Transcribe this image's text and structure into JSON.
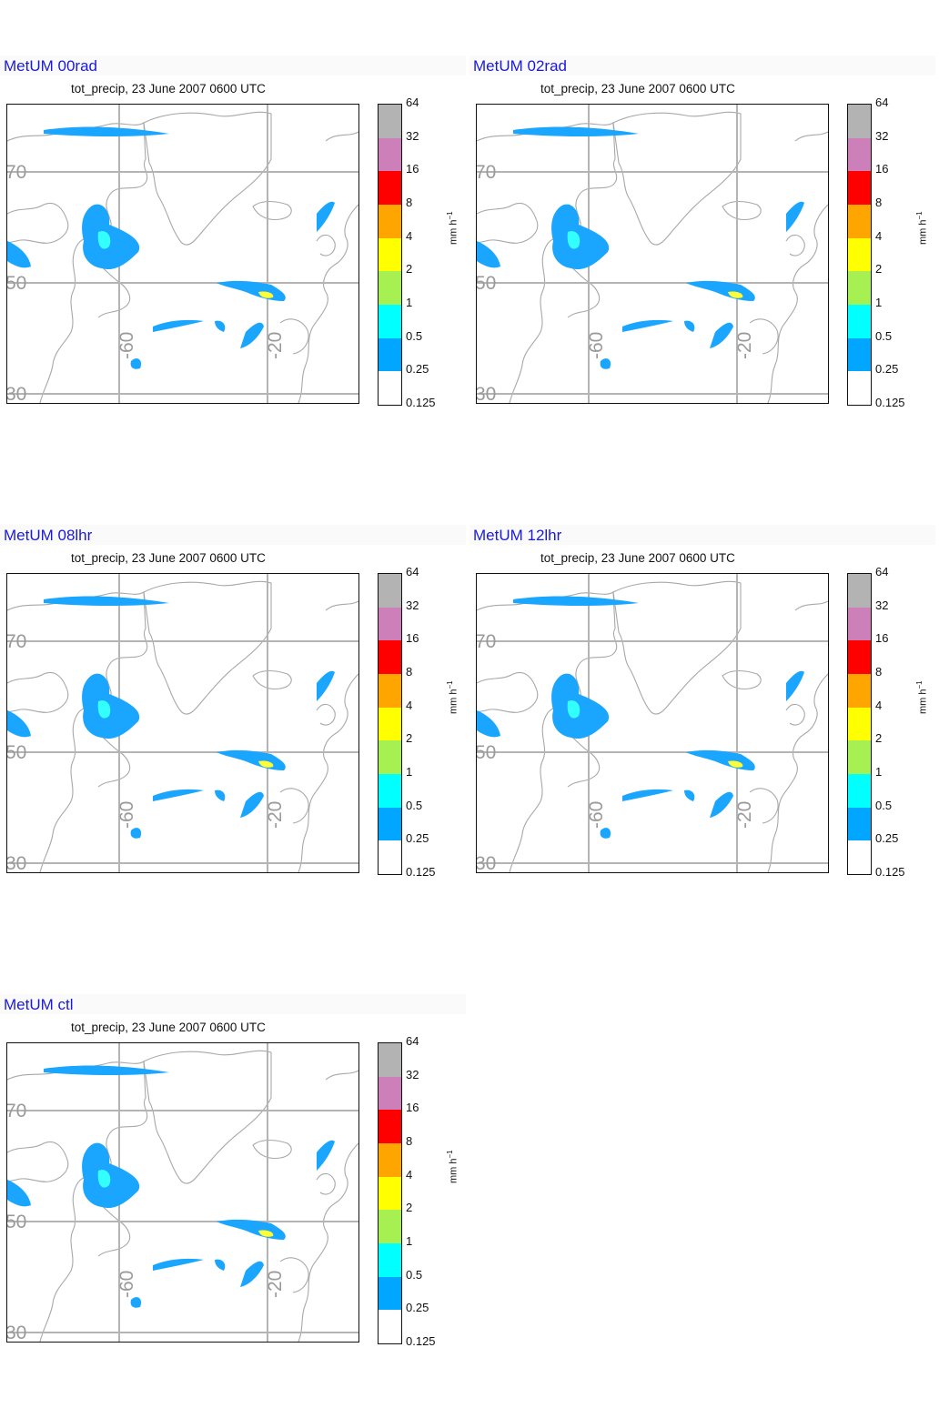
{
  "panels": [
    {
      "title": "MetUM 00rad",
      "subtitle": "tot_precip, 23 June 2007 0600 UTC"
    },
    {
      "title": "MetUM 02rad",
      "subtitle": "tot_precip, 23 June 2007 0600 UTC"
    },
    {
      "title": "MetUM 08lhr",
      "subtitle": "tot_precip, 23 June 2007 0600 UTC"
    },
    {
      "title": "MetUM 12lhr",
      "subtitle": "tot_precip, 23 June 2007 0600 UTC"
    },
    {
      "title": "MetUM ctl",
      "subtitle": "tot_precip, 23 June 2007 0600 UTC"
    }
  ],
  "map": {
    "lat_labels": [
      "70",
      "50",
      "30"
    ],
    "lon_labels": [
      "-60",
      "-20"
    ]
  },
  "colorbar": {
    "levels": [
      "64",
      "32",
      "16",
      "8",
      "4",
      "2",
      "1",
      "0.5",
      "0.25",
      "0.125"
    ],
    "colors": [
      "#b3b3b3",
      "#cc7fb8",
      "#ff0000",
      "#ffa500",
      "#ffff00",
      "#a6f052",
      "#00ffff",
      "#00a6ff",
      "#ffffff"
    ],
    "units_main": "mm h",
    "units_exp": "−1"
  }
}
